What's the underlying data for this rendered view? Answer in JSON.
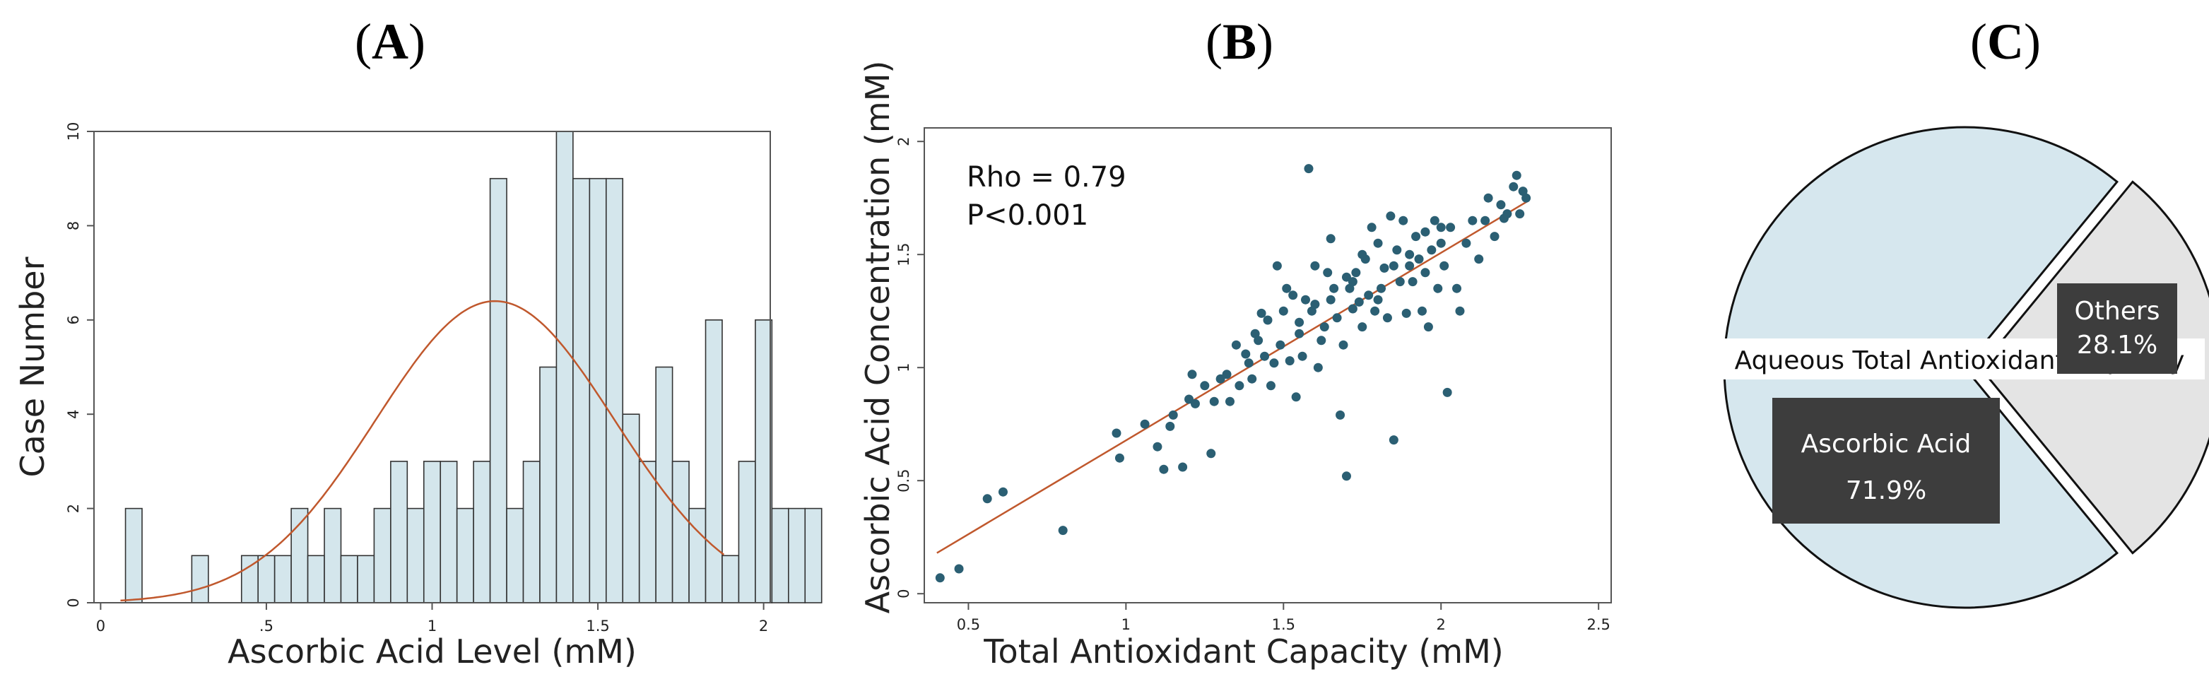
{
  "panels": {
    "a": {
      "open": "(",
      "letter": "A",
      "close": ")"
    },
    "b": {
      "open": "(",
      "letter": "B",
      "close": ")"
    },
    "c": {
      "open": "(",
      "letter": "C",
      "close": ")"
    }
  },
  "chart_data": [
    {
      "id": "A",
      "type": "bar",
      "subtype": "histogram",
      "xlabel": "Ascorbic Acid Level (mM)",
      "ylabel": "Case Number",
      "xlim": [
        -0.02,
        2.02
      ],
      "ylim": [
        0,
        10
      ],
      "xticks": [
        0,
        0.5,
        1,
        1.5,
        2
      ],
      "xtick_labels": [
        "0",
        ".5",
        "1",
        "1.5",
        "2"
      ],
      "yticks": [
        0,
        2,
        4,
        6,
        8,
        10
      ],
      "ytick_labels": [
        "0",
        "2",
        "4",
        "6",
        "8",
        "10"
      ],
      "bin_start": 0.075,
      "bin_width": 0.05,
      "counts": [
        2,
        0,
        0,
        0,
        1,
        0,
        0,
        1,
        1,
        1,
        2,
        1,
        2,
        1,
        1,
        2,
        3,
        2,
        3,
        3,
        2,
        3,
        9,
        2,
        3,
        5,
        10,
        9,
        9,
        9,
        4,
        3,
        5,
        3,
        2,
        6,
        1,
        3,
        6,
        2,
        2,
        2
      ],
      "bar_color": "#d4e6ec",
      "curve": {
        "type": "normal-fit",
        "mean": 1.19,
        "sd": 0.36,
        "peak": 6.4,
        "color": "#c0582d"
      }
    },
    {
      "id": "B",
      "type": "scatter",
      "xlabel": "Total Antioxidant Capacity (mM)",
      "ylabel": "Ascorbic Acid Concentration (mM)",
      "xlim": [
        0.36,
        2.54
      ],
      "ylim": [
        -0.04,
        2.06
      ],
      "xticks": [
        0.5,
        1,
        1.5,
        2,
        2.5
      ],
      "xtick_labels": [
        "0.5",
        "1",
        "1.5",
        "2",
        "2.5"
      ],
      "yticks": [
        0,
        0.5,
        1,
        1.5,
        2
      ],
      "ytick_labels": [
        "0",
        "0.5",
        "1",
        "1.5",
        "2"
      ],
      "annotations": [
        "Rho = 0.79",
        "P<0.001"
      ],
      "point_color": "#2b5f73",
      "fit_line": {
        "x": [
          0.4,
          2.28
        ],
        "y": [
          0.18,
          1.74
        ],
        "color": "#c0582d"
      },
      "points": [
        [
          0.41,
          0.07
        ],
        [
          0.47,
          0.11
        ],
        [
          0.56,
          0.42
        ],
        [
          0.61,
          0.45
        ],
        [
          0.8,
          0.28
        ],
        [
          0.97,
          0.71
        ],
        [
          0.98,
          0.6
        ],
        [
          1.06,
          0.75
        ],
        [
          1.1,
          0.65
        ],
        [
          1.12,
          0.55
        ],
        [
          1.14,
          0.74
        ],
        [
          1.15,
          0.79
        ],
        [
          1.18,
          0.56
        ],
        [
          1.2,
          0.86
        ],
        [
          1.21,
          0.97
        ],
        [
          1.22,
          0.84
        ],
        [
          1.25,
          0.92
        ],
        [
          1.27,
          0.62
        ],
        [
          1.28,
          0.85
        ],
        [
          1.3,
          0.95
        ],
        [
          1.32,
          0.97
        ],
        [
          1.33,
          0.85
        ],
        [
          1.35,
          1.1
        ],
        [
          1.36,
          0.92
        ],
        [
          1.38,
          1.06
        ],
        [
          1.39,
          1.02
        ],
        [
          1.4,
          0.95
        ],
        [
          1.41,
          1.15
        ],
        [
          1.42,
          1.12
        ],
        [
          1.43,
          1.24
        ],
        [
          1.44,
          1.05
        ],
        [
          1.45,
          1.21
        ],
        [
          1.46,
          0.92
        ],
        [
          1.47,
          1.02
        ],
        [
          1.48,
          1.45
        ],
        [
          1.49,
          1.1
        ],
        [
          1.5,
          1.25
        ],
        [
          1.51,
          1.35
        ],
        [
          1.52,
          1.03
        ],
        [
          1.53,
          1.32
        ],
        [
          1.54,
          0.87
        ],
        [
          1.55,
          1.15
        ],
        [
          1.56,
          1.05
        ],
        [
          1.57,
          1.3
        ],
        [
          1.58,
          1.88
        ],
        [
          1.59,
          1.25
        ],
        [
          1.6,
          1.28
        ],
        [
          1.61,
          1.0
        ],
        [
          1.62,
          1.12
        ],
        [
          1.63,
          1.18
        ],
        [
          1.64,
          1.42
        ],
        [
          1.65,
          1.57
        ],
        [
          1.66,
          1.35
        ],
        [
          1.67,
          1.22
        ],
        [
          1.68,
          0.79
        ],
        [
          1.69,
          1.1
        ],
        [
          1.7,
          0.52
        ],
        [
          1.71,
          1.35
        ],
        [
          1.72,
          1.26
        ],
        [
          1.73,
          1.42
        ],
        [
          1.74,
          1.29
        ],
        [
          1.75,
          1.18
        ],
        [
          1.76,
          1.48
        ],
        [
          1.77,
          1.32
        ],
        [
          1.78,
          1.62
        ],
        [
          1.79,
          1.25
        ],
        [
          1.8,
          1.55
        ],
        [
          1.81,
          1.35
        ],
        [
          1.82,
          1.44
        ],
        [
          1.83,
          1.22
        ],
        [
          1.84,
          1.67
        ],
        [
          1.85,
          0.68
        ],
        [
          1.86,
          1.52
        ],
        [
          1.87,
          1.38
        ],
        [
          1.88,
          1.65
        ],
        [
          1.89,
          1.24
        ],
        [
          1.9,
          1.45
        ],
        [
          1.91,
          1.38
        ],
        [
          1.92,
          1.58
        ],
        [
          1.93,
          1.48
        ],
        [
          1.94,
          1.25
        ],
        [
          1.95,
          1.42
        ],
        [
          1.96,
          1.18
        ],
        [
          1.97,
          1.52
        ],
        [
          1.98,
          1.65
        ],
        [
          1.99,
          1.35
        ],
        [
          2.0,
          1.55
        ],
        [
          2.01,
          1.45
        ],
        [
          2.02,
          0.89
        ],
        [
          2.03,
          1.62
        ],
        [
          2.05,
          1.35
        ],
        [
          2.06,
          1.25
        ],
        [
          2.08,
          1.55
        ],
        [
          2.1,
          1.65
        ],
        [
          2.12,
          1.48
        ],
        [
          2.14,
          1.65
        ],
        [
          2.15,
          1.75
        ],
        [
          2.17,
          1.58
        ],
        [
          2.19,
          1.72
        ],
        [
          2.2,
          1.66
        ],
        [
          2.21,
          1.68
        ],
        [
          2.23,
          1.8
        ],
        [
          2.24,
          1.85
        ],
        [
          2.25,
          1.68
        ],
        [
          2.26,
          1.78
        ],
        [
          2.27,
          1.75
        ],
        [
          1.6,
          1.45
        ],
        [
          1.7,
          1.4
        ],
        [
          1.75,
          1.5
        ],
        [
          1.8,
          1.3
        ],
        [
          1.85,
          1.45
        ],
        [
          1.9,
          1.5
        ],
        [
          1.95,
          1.6
        ],
        [
          2.0,
          1.62
        ],
        [
          1.55,
          1.2
        ],
        [
          1.65,
          1.3
        ],
        [
          1.72,
          1.38
        ]
      ]
    },
    {
      "id": "C",
      "type": "pie",
      "title": "Aqueous Total Antioxidant Capacity",
      "slices": [
        {
          "label": "Ascorbic Acid",
          "value": 71.9,
          "display": "71.9%",
          "color": "#d6e7ee"
        },
        {
          "label": "Others",
          "value": 28.1,
          "display": "28.1%",
          "color": "#e4e4e4",
          "exploded": true
        }
      ]
    }
  ]
}
